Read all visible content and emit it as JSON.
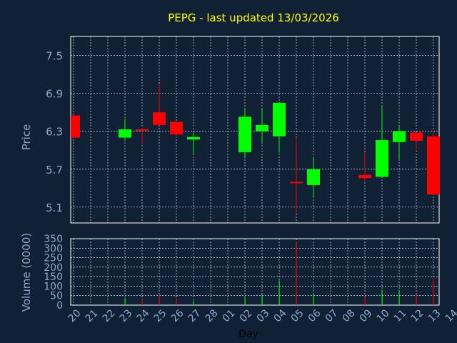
{
  "chart_data": [
    {
      "type": "candlestick",
      "title": "PEPG - last updated 13/03/2026",
      "xlabel": "",
      "ylabel": "Price",
      "ylim": [
        4.85,
        7.8
      ],
      "yticks": [
        "7.5",
        "6.9",
        "6.3",
        "5.7",
        "5.1"
      ],
      "colors": {
        "up": "#00ff00",
        "down": "#ff0000",
        "title": "#ffff00",
        "labels": "#8ea8c8",
        "background": "#102035",
        "grid": "#ffffff"
      },
      "categories": [
        "20",
        "21",
        "22",
        "23",
        "24",
        "25",
        "26",
        "27",
        "28",
        "01",
        "02",
        "03",
        "04",
        "05",
        "06",
        "07",
        "08",
        "09",
        "10",
        "11",
        "12",
        "13",
        "14"
      ],
      "candles": [
        {
          "x": "20",
          "open": 6.55,
          "high": 6.55,
          "low": 6.2,
          "close": 6.2
        },
        {
          "x": "23",
          "open": 6.2,
          "high": 6.5,
          "low": 6.15,
          "close": 6.33
        },
        {
          "x": "24",
          "open": 6.33,
          "high": 6.35,
          "low": 6.1,
          "close": 6.31
        },
        {
          "x": "25",
          "open": 6.6,
          "high": 7.05,
          "low": 6.4,
          "close": 6.4
        },
        {
          "x": "26",
          "open": 6.45,
          "high": 6.45,
          "low": 6.2,
          "close": 6.25
        },
        {
          "x": "27",
          "open": 6.17,
          "high": 6.28,
          "low": 5.95,
          "close": 6.21
        },
        {
          "x": "02",
          "open": 5.97,
          "high": 6.65,
          "low": 5.88,
          "close": 6.53
        },
        {
          "x": "03",
          "open": 6.3,
          "high": 6.65,
          "low": 6.1,
          "close": 6.4
        },
        {
          "x": "04",
          "open": 6.22,
          "high": 6.75,
          "low": 5.96,
          "close": 6.75
        },
        {
          "x": "05",
          "open": 5.5,
          "high": 6.2,
          "low": 5.0,
          "close": 5.48
        },
        {
          "x": "06",
          "open": 5.45,
          "high": 5.9,
          "low": 5.25,
          "close": 5.7
        },
        {
          "x": "09",
          "open": 5.61,
          "high": 5.97,
          "low": 5.5,
          "close": 5.56
        },
        {
          "x": "10",
          "open": 5.58,
          "high": 6.7,
          "low": 5.58,
          "close": 6.16
        },
        {
          "x": "11",
          "open": 6.13,
          "high": 6.38,
          "low": 5.86,
          "close": 6.3
        },
        {
          "x": "12",
          "open": 6.28,
          "high": 6.28,
          "low": 6.0,
          "close": 6.15
        },
        {
          "x": "13",
          "open": 6.22,
          "high": 6.3,
          "low": 5.3,
          "close": 5.3
        }
      ]
    },
    {
      "type": "bar",
      "xlabel": "Day",
      "ylabel": "Volume (0000)",
      "ylim": [
        0,
        350
      ],
      "yticks": [
        "350",
        "300",
        "250",
        "200",
        "150",
        "100",
        "50",
        "0"
      ],
      "categories": [
        "20",
        "21",
        "22",
        "23",
        "24",
        "25",
        "26",
        "27",
        "28",
        "01",
        "02",
        "03",
        "04",
        "05",
        "06",
        "07",
        "08",
        "09",
        "10",
        "11",
        "12",
        "13",
        "14"
      ],
      "bars": [
        {
          "x": "23",
          "value": 38,
          "up": true
        },
        {
          "x": "24",
          "value": 30,
          "up": false
        },
        {
          "x": "25",
          "value": 55,
          "up": false
        },
        {
          "x": "26",
          "value": 30,
          "up": false
        },
        {
          "x": "27",
          "value": 22,
          "up": true
        },
        {
          "x": "02",
          "value": 40,
          "up": true
        },
        {
          "x": "03",
          "value": 55,
          "up": true
        },
        {
          "x": "04",
          "value": 130,
          "up": true
        },
        {
          "x": "05",
          "value": 335,
          "up": false
        },
        {
          "x": "06",
          "value": 60,
          "up": true
        },
        {
          "x": "09",
          "value": 45,
          "up": false
        },
        {
          "x": "10",
          "value": 80,
          "up": true
        },
        {
          "x": "11",
          "value": 75,
          "up": true
        },
        {
          "x": "12",
          "value": 60,
          "up": false
        },
        {
          "x": "13",
          "value": 140,
          "up": false
        }
      ]
    }
  ]
}
